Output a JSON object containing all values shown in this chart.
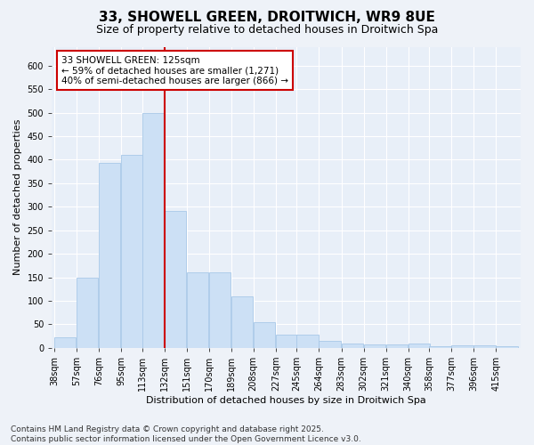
{
  "title_line1": "33, SHOWELL GREEN, DROITWICH, WR9 8UE",
  "title_line2": "Size of property relative to detached houses in Droitwich Spa",
  "xlabel": "Distribution of detached houses by size in Droitwich Spa",
  "ylabel": "Number of detached properties",
  "bar_color": "#cce0f5",
  "bar_edge_color": "#a8c8e8",
  "background_color": "#e8eff8",
  "grid_color": "#ffffff",
  "annotation_box_color": "#cc0000",
  "annotation_text": "33 SHOWELL GREEN: 125sqm\n← 59% of detached houses are smaller (1,271)\n40% of semi-detached houses are larger (866) →",
  "vline_x": 132,
  "vline_color": "#cc0000",
  "categories": [
    "38sqm",
    "57sqm",
    "76sqm",
    "95sqm",
    "113sqm",
    "132sqm",
    "151sqm",
    "170sqm",
    "189sqm",
    "208sqm",
    "227sqm",
    "245sqm",
    "264sqm",
    "283sqm",
    "302sqm",
    "321sqm",
    "340sqm",
    "358sqm",
    "377sqm",
    "396sqm",
    "415sqm"
  ],
  "bin_edges": [
    38,
    57,
    76,
    95,
    113,
    132,
    151,
    170,
    189,
    208,
    227,
    245,
    264,
    283,
    302,
    321,
    340,
    358,
    377,
    396,
    415
  ],
  "bin_width": 19,
  "values": [
    22,
    150,
    393,
    410,
    500,
    291,
    160,
    160,
    110,
    54,
    29,
    29,
    15,
    10,
    7,
    8,
    10,
    4,
    6,
    6,
    4
  ],
  "ylim": [
    0,
    640
  ],
  "yticks": [
    0,
    50,
    100,
    150,
    200,
    250,
    300,
    350,
    400,
    450,
    500,
    550,
    600
  ],
  "footer_text": "Contains HM Land Registry data © Crown copyright and database right 2025.\nContains public sector information licensed under the Open Government Licence v3.0.",
  "title_fontsize": 11,
  "subtitle_fontsize": 9,
  "axis_label_fontsize": 8,
  "tick_fontsize": 7,
  "annotation_fontsize": 7.5,
  "footer_fontsize": 6.5
}
